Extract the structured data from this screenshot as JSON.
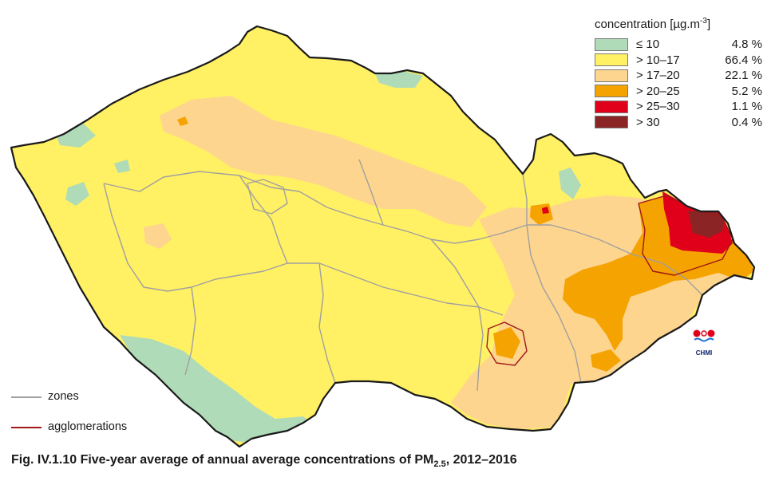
{
  "legend": {
    "title_prefix": "concentration [µg.m",
    "title_exp": "-3",
    "title_suffix": "]",
    "items": [
      {
        "range": "≤ 10",
        "percent": "4.8 %",
        "color": "#b0dbb8"
      },
      {
        "range": "> 10–17",
        "percent": "66.4 %",
        "color": "#fff064"
      },
      {
        "range": "> 17–20",
        "percent": "22.1 %",
        "color": "#fdd58f"
      },
      {
        "range": "> 20–25",
        "percent": "5.2 %",
        "color": "#f5a300"
      },
      {
        "range": "> 25–30",
        "percent": "1.1 %",
        "color": "#e1001a"
      },
      {
        "range": "> 30",
        "percent": "0.4 %",
        "color": "#8b2525"
      }
    ]
  },
  "boundaries": {
    "zones": {
      "label": "zones",
      "color": "#a0a0a0"
    },
    "agglomerations": {
      "label": "agglomerations",
      "color": "#a01818"
    }
  },
  "logo": {
    "text": "CHMI",
    "icon": "chmi-logo-icon"
  },
  "caption": {
    "prefix": "Fig. IV.1.10  Five-year average of annual average concentrations of PM",
    "sub": "2.5",
    "suffix": ", 2012–2016"
  }
}
